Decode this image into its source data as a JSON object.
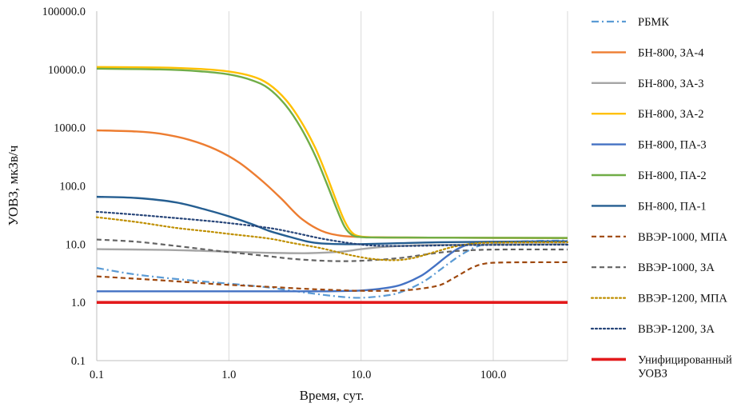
{
  "chart_data": {
    "type": "line",
    "title": "",
    "xlabel": "Время, сут.",
    "ylabel": "УОВЗ, мкЗв/ч",
    "xscale": "log",
    "yscale": "log",
    "xlim": [
      0.1,
      365
    ],
    "ylim": [
      0.1,
      100000
    ],
    "xticks": [
      0.1,
      1,
      10,
      100
    ],
    "xtick_labels": [
      "0.1",
      "1.0",
      "10.0",
      "100.0"
    ],
    "yticks": [
      0.1,
      1,
      10,
      100,
      1000,
      10000,
      100000
    ],
    "ytick_labels": [
      "0.1",
      "1.0",
      "10.0",
      "100.0",
      "1000.0",
      "10000.0",
      "100000.0"
    ],
    "grid": "vertical",
    "legend_position": "right",
    "series": [
      {
        "name": "РБМК",
        "color": "#5b9bd5",
        "dash": "dashdot",
        "width": 2.2,
        "points": [
          [
            0.1,
            3.9
          ],
          [
            0.2,
            3.0
          ],
          [
            0.5,
            2.4
          ],
          [
            1,
            2.1
          ],
          [
            2,
            1.8
          ],
          [
            4,
            1.45
          ],
          [
            7,
            1.25
          ],
          [
            10,
            1.2
          ],
          [
            15,
            1.3
          ],
          [
            20,
            1.5
          ],
          [
            30,
            2.3
          ],
          [
            45,
            4.5
          ],
          [
            60,
            7.0
          ],
          [
            80,
            9.5
          ],
          [
            120,
            10.8
          ],
          [
            200,
            11.3
          ],
          [
            365,
            11.6
          ]
        ]
      },
      {
        "name": "БН-800, ЗА-4",
        "color": "#ed7d31",
        "dash": "solid",
        "width": 2.4,
        "points": [
          [
            0.1,
            900
          ],
          [
            0.2,
            860
          ],
          [
            0.3,
            790
          ],
          [
            0.5,
            620
          ],
          [
            0.8,
            420
          ],
          [
            1.2,
            250
          ],
          [
            1.8,
            120
          ],
          [
            2.5,
            60
          ],
          [
            3.5,
            28
          ],
          [
            5,
            17
          ],
          [
            7,
            14
          ],
          [
            10,
            13.3
          ],
          [
            20,
            13
          ],
          [
            100,
            12.8
          ],
          [
            365,
            12.7
          ]
        ]
      },
      {
        "name": "БН-800, ЗА-3",
        "color": "#a5a5a5",
        "dash": "solid",
        "width": 2.4,
        "points": [
          [
            0.1,
            8.2
          ],
          [
            0.3,
            8.0
          ],
          [
            0.6,
            7.7
          ],
          [
            1,
            7.4
          ],
          [
            2,
            7.1
          ],
          [
            4,
            7.0
          ],
          [
            7,
            7.4
          ],
          [
            10,
            8.2
          ],
          [
            15,
            9.0
          ],
          [
            30,
            9.6
          ],
          [
            100,
            9.9
          ],
          [
            365,
            10
          ]
        ]
      },
      {
        "name": "БН-800, ЗА-2",
        "color": "#ffc000",
        "dash": "solid",
        "width": 2.4,
        "points": [
          [
            0.1,
            11000
          ],
          [
            0.3,
            10800
          ],
          [
            0.6,
            10200
          ],
          [
            1,
            9200
          ],
          [
            1.5,
            7600
          ],
          [
            2,
            5600
          ],
          [
            2.7,
            3000
          ],
          [
            3.5,
            1300
          ],
          [
            4.5,
            450
          ],
          [
            5.5,
            150
          ],
          [
            6.5,
            55
          ],
          [
            7.5,
            25
          ],
          [
            8.5,
            16
          ],
          [
            10,
            13.5
          ],
          [
            15,
            13
          ],
          [
            50,
            12.9
          ],
          [
            365,
            12.8
          ]
        ]
      },
      {
        "name": "БН-800, ПА-3",
        "color": "#4472c4",
        "dash": "solid",
        "width": 2.4,
        "points": [
          [
            0.1,
            1.55
          ],
          [
            1,
            1.55
          ],
          [
            5,
            1.55
          ],
          [
            10,
            1.6
          ],
          [
            15,
            1.75
          ],
          [
            20,
            2.0
          ],
          [
            28,
            2.8
          ],
          [
            35,
            4.0
          ],
          [
            45,
            6.3
          ],
          [
            55,
            8.5
          ],
          [
            70,
            10.4
          ],
          [
            100,
            11
          ],
          [
            365,
            11.2
          ]
        ]
      },
      {
        "name": "БН-800, ПА-2",
        "color": "#70ad47",
        "dash": "solid",
        "width": 2.4,
        "points": [
          [
            0.1,
            10300
          ],
          [
            0.3,
            10000
          ],
          [
            0.6,
            9300
          ],
          [
            1,
            8200
          ],
          [
            1.5,
            6500
          ],
          [
            2,
            4700
          ],
          [
            2.7,
            2400
          ],
          [
            3.5,
            1000
          ],
          [
            4.5,
            330
          ],
          [
            5.5,
            110
          ],
          [
            6.5,
            42
          ],
          [
            7.5,
            20
          ],
          [
            8.5,
            14.5
          ],
          [
            10,
            13.2
          ],
          [
            15,
            13
          ],
          [
            50,
            12.9
          ],
          [
            365,
            12.8
          ]
        ]
      },
      {
        "name": "БН-800, ПА-1",
        "color": "#255e91",
        "dash": "solid",
        "width": 2.4,
        "points": [
          [
            0.1,
            65
          ],
          [
            0.2,
            62
          ],
          [
            0.4,
            52
          ],
          [
            0.7,
            38
          ],
          [
            1,
            30
          ],
          [
            1.5,
            22
          ],
          [
            2,
            17
          ],
          [
            3,
            13
          ],
          [
            4,
            11
          ],
          [
            5,
            10.3
          ],
          [
            7,
            10
          ],
          [
            10,
            10
          ],
          [
            20,
            10.4
          ],
          [
            40,
            10.8
          ],
          [
            100,
            11
          ],
          [
            365,
            11.1
          ]
        ]
      },
      {
        "name": "ВВЭР-1000, МПА",
        "color": "#9e480e",
        "dash": "dashed",
        "width": 2.2,
        "points": [
          [
            0.1,
            2.8
          ],
          [
            0.3,
            2.4
          ],
          [
            0.7,
            2.1
          ],
          [
            1,
            2.0
          ],
          [
            2,
            1.85
          ],
          [
            4,
            1.7
          ],
          [
            7,
            1.62
          ],
          [
            10,
            1.58
          ],
          [
            20,
            1.6
          ],
          [
            30,
            1.75
          ],
          [
            40,
            2.0
          ],
          [
            50,
            2.6
          ],
          [
            60,
            3.3
          ],
          [
            70,
            4.0
          ],
          [
            85,
            4.6
          ],
          [
            120,
            4.85
          ],
          [
            365,
            4.9
          ]
        ]
      },
      {
        "name": "ВВЭР-1000, ЗА",
        "color": "#636363",
        "dash": "dashed",
        "width": 2.2,
        "points": [
          [
            0.1,
            12
          ],
          [
            0.2,
            11
          ],
          [
            0.4,
            9.3
          ],
          [
            0.7,
            8
          ],
          [
            1,
            7.3
          ],
          [
            2,
            6.2
          ],
          [
            3,
            5.6
          ],
          [
            5,
            5.2
          ],
          [
            8,
            5.1
          ],
          [
            12,
            5.3
          ],
          [
            20,
            5.8
          ],
          [
            30,
            6.6
          ],
          [
            45,
            7.4
          ],
          [
            70,
            7.9
          ],
          [
            120,
            8.1
          ],
          [
            365,
            8.1
          ]
        ]
      },
      {
        "name": "ВВЭР-1200, МПА",
        "color": "#bf8f00",
        "dash": "dotted",
        "width": 2.2,
        "points": [
          [
            0.1,
            29
          ],
          [
            0.2,
            24
          ],
          [
            0.4,
            19
          ],
          [
            0.7,
            16.5
          ],
          [
            1,
            15
          ],
          [
            2,
            12.5
          ],
          [
            3,
            10.5
          ],
          [
            5,
            8.5
          ],
          [
            8,
            6.6
          ],
          [
            12,
            5.6
          ],
          [
            18,
            5.3
          ],
          [
            25,
            5.8
          ],
          [
            35,
            7.2
          ],
          [
            50,
            9.0
          ],
          [
            70,
            10.2
          ],
          [
            100,
            10.6
          ],
          [
            365,
            10.8
          ]
        ]
      },
      {
        "name": "ВВЭР-1200, ЗА",
        "color": "#264478",
        "dash": "dotted",
        "width": 2.2,
        "points": [
          [
            0.1,
            36
          ],
          [
            0.2,
            32
          ],
          [
            0.4,
            28
          ],
          [
            0.7,
            25
          ],
          [
            1,
            23
          ],
          [
            2,
            19
          ],
          [
            3,
            16
          ],
          [
            5,
            12.5
          ],
          [
            8,
            10.5
          ],
          [
            12,
            9.5
          ],
          [
            20,
            9.3
          ],
          [
            30,
            9.4
          ],
          [
            50,
            9.6
          ],
          [
            100,
            9.7
          ],
          [
            365,
            9.8
          ]
        ]
      },
      {
        "name": "Унифицированный УОВЗ",
        "color": "#e31a1c",
        "dash": "solid",
        "width": 3.6,
        "points": [
          [
            0.1,
            1
          ],
          [
            365,
            1
          ]
        ]
      }
    ]
  }
}
